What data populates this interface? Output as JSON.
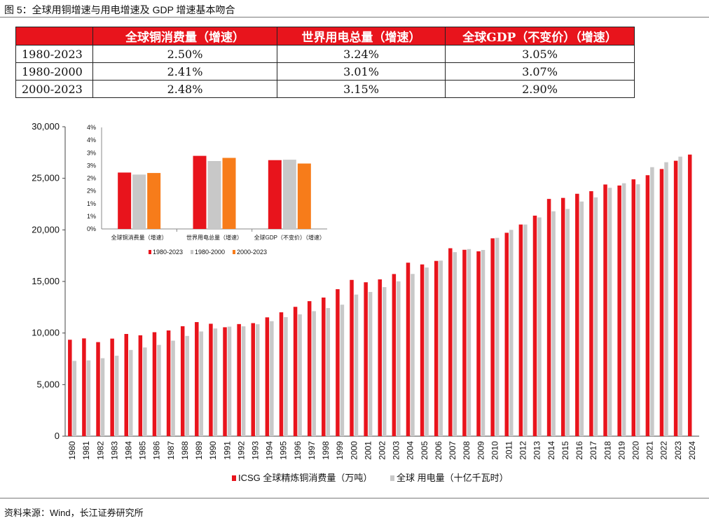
{
  "figure": {
    "title": "图 5：全球用铜增速与用电增速及 GDP 增速基本吻合",
    "source": "资料来源：Wind，长江证券研究所"
  },
  "table": {
    "headers": [
      "",
      "全球铜消费量（增速）",
      "世界用电总量（增速）",
      "全球GDP（不变价）（增速）"
    ],
    "rows": [
      [
        "1980-2023",
        "2.50%",
        "3.24%",
        "3.05%"
      ],
      [
        "1980-2000",
        "2.41%",
        "3.01%",
        "3.07%"
      ],
      [
        "2000-2023",
        "2.48%",
        "3.15%",
        "2.90%"
      ]
    ]
  },
  "chart_data": [
    {
      "type": "bar",
      "categories": [
        "1980",
        "1981",
        "1982",
        "1983",
        "1984",
        "1985",
        "1986",
        "1987",
        "1988",
        "1989",
        "1990",
        "1991",
        "1992",
        "1993",
        "1994",
        "1995",
        "1996",
        "1997",
        "1998",
        "1999",
        "2000",
        "2001",
        "2002",
        "2003",
        "2004",
        "2005",
        "2006",
        "2007",
        "2008",
        "2009",
        "2010",
        "2011",
        "2012",
        "2013",
        "2014",
        "2015",
        "2016",
        "2017",
        "2018",
        "2019",
        "2020",
        "2021",
        "2022",
        "2023",
        "2024"
      ],
      "series": [
        {
          "name": "ICSG 全球精炼铜消费量（万吨）",
          "color": "#e8141c",
          "values": [
            9350,
            9480,
            9120,
            9460,
            9910,
            9780,
            10080,
            10250,
            10660,
            11060,
            10900,
            10560,
            10870,
            10960,
            11520,
            12010,
            12540,
            13090,
            13440,
            14250,
            15150,
            14920,
            15200,
            15720,
            16820,
            16650,
            16990,
            18220,
            18070,
            17920,
            19180,
            19720,
            20520,
            21380,
            23000,
            23100,
            23500,
            23750,
            24400,
            24300,
            24900,
            25300,
            25900,
            26700,
            27300
          ]
        },
        {
          "name": "全球 用电量（十亿千瓦时）",
          "color": "#c8c8c8",
          "values": [
            7300,
            7350,
            7560,
            7800,
            8360,
            8600,
            8850,
            9260,
            9720,
            10150,
            10440,
            10620,
            10650,
            10850,
            11150,
            11540,
            11810,
            12120,
            12420,
            12750,
            13730,
            13980,
            14450,
            15010,
            15730,
            16350,
            17020,
            17840,
            18140,
            18050,
            19230,
            20000,
            20520,
            21210,
            21800,
            22030,
            22750,
            23150,
            24080,
            24520,
            24420,
            26080,
            26560,
            27100,
            null
          ]
        }
      ],
      "ylim": [
        0,
        30000
      ],
      "yticks": [
        "0",
        "5,000",
        "10,000",
        "15,000",
        "20,000",
        "25,000",
        "30,000"
      ],
      "legend_position": "bottom"
    },
    {
      "type": "bar",
      "categories": [
        "全球铜消费量（增速）",
        "世界用电总量（增速）",
        "全球GDP（不变价）（增速）"
      ],
      "series": [
        {
          "name": "1980-2023",
          "color": "#e8141c",
          "values": [
            2.5,
            3.24,
            3.05
          ]
        },
        {
          "name": "1980-2000",
          "color": "#c8c8c8",
          "values": [
            2.41,
            3.01,
            3.07
          ]
        },
        {
          "name": "2000-2023",
          "color": "#f77c1a",
          "values": [
            2.48,
            3.15,
            2.9
          ]
        }
      ],
      "ylim": [
        0,
        4.5
      ],
      "yticks": [
        "0%",
        "1%",
        "1%",
        "2%",
        "2%",
        "3%",
        "3%",
        "4%",
        "4%"
      ],
      "legend_position": "bottom"
    }
  ]
}
